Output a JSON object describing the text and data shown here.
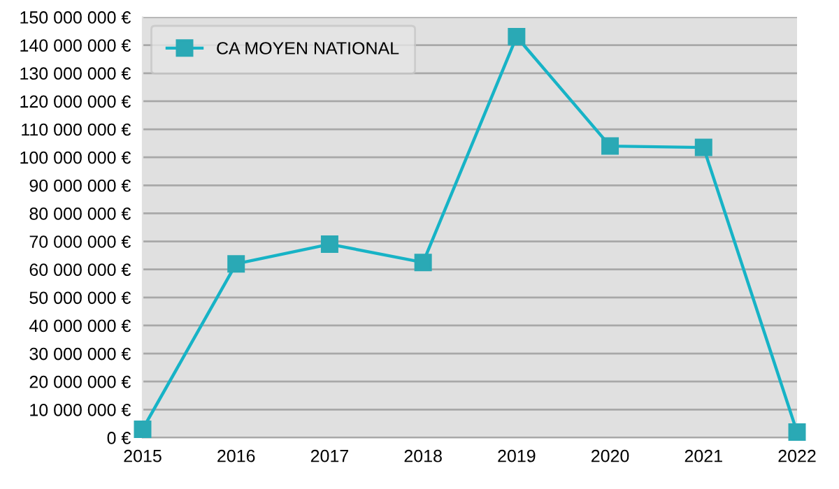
{
  "chart_data": {
    "type": "line",
    "x": [
      2015,
      2016,
      2017,
      2018,
      2019,
      2020,
      2021,
      2022
    ],
    "series": [
      {
        "name": "CA MOYEN NATIONAL",
        "color": "#17b3c6",
        "values": [
          3000000,
          62000000,
          69000000,
          62500000,
          143000000,
          104000000,
          103500000,
          2000000
        ]
      }
    ],
    "xlim": [
      2015,
      2022
    ],
    "xticks": [
      2015,
      2016,
      2017,
      2018,
      2019,
      2020,
      2021,
      2022
    ],
    "ylim": [
      0,
      150000000
    ],
    "yticks": [
      {
        "value": 0,
        "label": "0 €"
      },
      {
        "value": 10000000,
        "label": "10 000 000 €"
      },
      {
        "value": 20000000,
        "label": "20 000 000 €"
      },
      {
        "value": 30000000,
        "label": "30 000 000 €"
      },
      {
        "value": 40000000,
        "label": "40 000 000 €"
      },
      {
        "value": 50000000,
        "label": "50 000 000 €"
      },
      {
        "value": 60000000,
        "label": "60 000 000 €"
      },
      {
        "value": 70000000,
        "label": "70 000 000 €"
      },
      {
        "value": 80000000,
        "label": "80 000 000 €"
      },
      {
        "value": 90000000,
        "label": "90 000 000 €"
      },
      {
        "value": 100000000,
        "label": "100 000 000 €"
      },
      {
        "value": 110000000,
        "label": "110 000 000 €"
      },
      {
        "value": 120000000,
        "label": "120 000 000 €"
      },
      {
        "value": 130000000,
        "label": "130 000 000 €"
      },
      {
        "value": 140000000,
        "label": "140 000 000 €"
      },
      {
        "value": 150000000,
        "label": "150 000 000 €"
      }
    ],
    "grid": "y",
    "legend": "top left",
    "marker": "square",
    "line_style": "solid"
  }
}
